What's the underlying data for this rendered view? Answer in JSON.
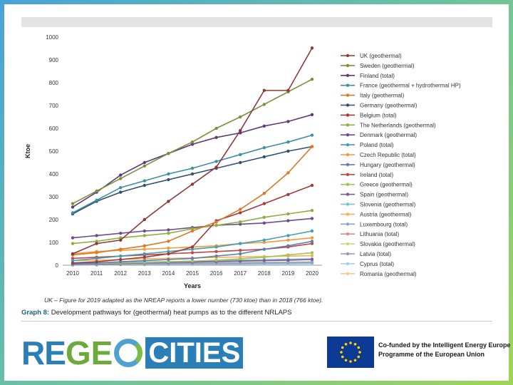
{
  "caption": "UK – Figure for 2019 adapted as the NREAP reports a lower number (730 ktoe) than in 2018 (766 ktoe).",
  "graph": {
    "label": "Graph 8:",
    "text": "Development pathways for (geothermal) heat pumps as to the different NRLAPS"
  },
  "logo": {
    "part1": "RE",
    "part2": "GE",
    "part3": "CITIES"
  },
  "eu": {
    "line1": "Co-funded by the Intelligent Energy Europe",
    "line2": "Programme of the European Union"
  },
  "chart_data": {
    "type": "line",
    "xlabel": "Years",
    "ylabel": "Ktoe",
    "x": [
      2010,
      2011,
      2012,
      2013,
      2014,
      2015,
      2016,
      2017,
      2018,
      2019,
      2020
    ],
    "ylim": [
      0,
      1000
    ],
    "yticks": [
      0,
      100,
      200,
      300,
      400,
      500,
      600,
      700,
      800,
      900,
      1000
    ],
    "grid": false,
    "legend_position": "right",
    "series": [
      {
        "name": "UK (geothermal)",
        "color": "#8b3a3a",
        "values": [
          50,
          95,
          110,
          200,
          280,
          355,
          430,
          590,
          766,
          766,
          952
        ]
      },
      {
        "name": "Sweden (geothermal)",
        "color": "#7a8f3a",
        "values": [
          270,
          325,
          380,
          435,
          490,
          540,
          600,
          650,
          705,
          760,
          815
        ]
      },
      {
        "name": "Finland (total)",
        "color": "#5e3a78",
        "values": [
          255,
          320,
          395,
          450,
          490,
          530,
          560,
          580,
          610,
          630,
          660
        ]
      },
      {
        "name": "France (geothermal + hydrothermal HP)",
        "color": "#3d8fa6",
        "values": [
          230,
          285,
          340,
          370,
          400,
          425,
          455,
          485,
          515,
          540,
          570
        ]
      },
      {
        "name": "Italy (geothermal)",
        "color": "#d97a2a",
        "values": [
          45,
          55,
          70,
          85,
          105,
          150,
          190,
          245,
          315,
          405,
          520
        ]
      },
      {
        "name": "Germany (geothermal)",
        "color": "#2f4f73",
        "values": [
          225,
          280,
          320,
          350,
          375,
          400,
          425,
          450,
          475,
          500,
          520
        ]
      },
      {
        "name": "Belgium (total)",
        "color": "#a33a3a",
        "values": [
          10,
          15,
          25,
          35,
          50,
          80,
          195,
          230,
          270,
          310,
          350
        ]
      },
      {
        "name": "The Netherlands (geothermal)",
        "color": "#8fae3f",
        "values": [
          95,
          105,
          120,
          130,
          140,
          160,
          175,
          190,
          210,
          225,
          240
        ]
      },
      {
        "name": "Denmark (geothermal)",
        "color": "#6d4c8f",
        "values": [
          120,
          130,
          140,
          150,
          155,
          165,
          175,
          180,
          185,
          195,
          205
        ]
      },
      {
        "name": "Poland (total)",
        "color": "#3fa0b5",
        "values": [
          20,
          30,
          40,
          50,
          60,
          70,
          80,
          95,
          110,
          130,
          150
        ]
      },
      {
        "name": "Czech Republic (total)",
        "color": "#f29a3a",
        "values": [
          50,
          60,
          65,
          70,
          75,
          80,
          85,
          95,
          100,
          110,
          120
        ]
      },
      {
        "name": "Hungary (geothermal)",
        "color": "#5a7fb0",
        "values": [
          5,
          10,
          15,
          20,
          25,
          30,
          40,
          50,
          70,
          85,
          105
        ]
      },
      {
        "name": "Ireland (total)",
        "color": "#c04848",
        "values": [
          30,
          35,
          40,
          45,
          50,
          55,
          60,
          65,
          70,
          80,
          95
        ]
      },
      {
        "name": "Greece (geothermal)",
        "color": "#a7c25a",
        "values": [
          5,
          8,
          10,
          12,
          15,
          18,
          22,
          28,
          35,
          45,
          55
        ]
      },
      {
        "name": "Spain (geothermal)",
        "color": "#7b5aa0",
        "values": [
          5,
          6,
          8,
          10,
          12,
          14,
          16,
          18,
          20,
          22,
          25
        ]
      },
      {
        "name": "Slovenia (geothermal)",
        "color": "#6cc0cf",
        "values": [
          8,
          10,
          12,
          14,
          16,
          18,
          20,
          22,
          24,
          26,
          28
        ]
      },
      {
        "name": "Austria (geothermal)",
        "color": "#f5b05a",
        "values": [
          20,
          22,
          25,
          28,
          30,
          32,
          34,
          36,
          38,
          40,
          42
        ]
      },
      {
        "name": "Luxembourg (total)",
        "color": "#8aa6cf",
        "values": [
          2,
          3,
          4,
          5,
          6,
          7,
          8,
          9,
          10,
          11,
          12
        ]
      },
      {
        "name": "Lithuania (total)",
        "color": "#d98a8a",
        "values": [
          3,
          4,
          5,
          6,
          7,
          8,
          9,
          10,
          11,
          12,
          13
        ]
      },
      {
        "name": "Slovakia (geothermal)",
        "color": "#c5d98a",
        "values": [
          4,
          5,
          6,
          7,
          8,
          9,
          10,
          11,
          12,
          13,
          14
        ]
      },
      {
        "name": "Latvia (total)",
        "color": "#a58fc5",
        "values": [
          1,
          2,
          3,
          4,
          5,
          6,
          7,
          8,
          9,
          10,
          11
        ]
      },
      {
        "name": "Cyprus (total)",
        "color": "#9fd6e0",
        "values": [
          1,
          1,
          2,
          2,
          3,
          3,
          4,
          4,
          5,
          5,
          6
        ]
      },
      {
        "name": "Romania (geothermal)",
        "color": "#f7c98a",
        "values": [
          5,
          6,
          7,
          8,
          9,
          10,
          11,
          12,
          13,
          14,
          15
        ]
      }
    ]
  }
}
